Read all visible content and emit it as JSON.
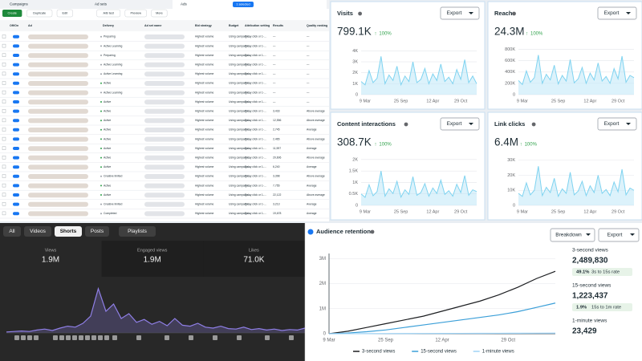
{
  "ads_table": {
    "tabs": [
      "Campaigns",
      "Ad sets",
      "Ads"
    ],
    "selected": "1 selected",
    "buttons": [
      "Create",
      "Duplicate",
      "Edit",
      "A/B test",
      "Preview",
      "More"
    ],
    "columns": [
      "Off/On",
      "Ad",
      "Delivery",
      "Ad set name",
      "Bid strategy",
      "Budget",
      "Attribution setting",
      "Results",
      "Quality ranking"
    ],
    "rows": [
      [
        "Preparing",
        "Highest volume",
        "Using campaign...",
        "7-day click or 1-...",
        "—",
        "—"
      ],
      [
        "Active Learning",
        "Highest volume",
        "Using campaign...",
        "7-day click or 1-...",
        "—",
        "—"
      ],
      [
        "Preparing",
        "Highest volume",
        "Using campaign...",
        "7-day click or 1-...",
        "—",
        "—"
      ],
      [
        "Active Learning",
        "Highest volume",
        "Using campaign...",
        "7-day click or 1-...",
        "—",
        "—"
      ],
      [
        "Active Learning",
        "Highest volume",
        "Using campaign...",
        "7-day click or 1-...",
        "—",
        "—"
      ],
      [
        "Active",
        "Highest volume",
        "Using campaign...",
        "7-day click or 1-...",
        "—",
        "—"
      ],
      [
        "Active Learning",
        "Highest volume",
        "Using campaign...",
        "7-day click or 1-...",
        "—",
        "—"
      ],
      [
        "Active",
        "Highest volume",
        "Using campaign...",
        "7-day click or 1-...",
        "—",
        "—"
      ],
      [
        "Active",
        "Highest volume",
        "Using campaign...",
        "7-day click or 1-...",
        "3,433",
        "Above average"
      ],
      [
        "Active",
        "Highest volume",
        "Using campaign...",
        "7-day click or 1-...",
        "12,556",
        "Above average"
      ],
      [
        "Active",
        "Highest volume",
        "Using campaign...",
        "7-day click or 1-...",
        "2,745",
        "Average"
      ],
      [
        "Active",
        "Highest volume",
        "Using campaign...",
        "7-day click or 1-...",
        "2,465",
        "Above average"
      ],
      [
        "Active",
        "Highest volume",
        "Using campaign...",
        "7-day click or 1-...",
        "11,597",
        "Average"
      ],
      [
        "Active",
        "Highest volume",
        "Using campaign...",
        "7-day click or 1-...",
        "20,606",
        "Above average"
      ],
      [
        "Active",
        "Highest volume",
        "Using campaign...",
        "7-day click or 1-...",
        "6,240",
        "Average"
      ],
      [
        "Creative limited",
        "Highest volume",
        "Using campaign...",
        "7-day click or 1-...",
        "3,398",
        "Above average"
      ],
      [
        "Active",
        "Highest volume",
        "Using campaign...",
        "7-day click or 1-...",
        "7,755",
        "Average"
      ],
      [
        "Active",
        "Highest volume",
        "Using campaign...",
        "7-day click or 1-...",
        "22,122",
        "Above average"
      ],
      [
        "Creative limited",
        "Highest volume",
        "Using campaign...",
        "7-day click or 1-...",
        "3,213",
        "Average"
      ],
      [
        "Completed",
        "Highest volume",
        "Using campaign...",
        "7-day click or 1-...",
        "19,678",
        "Average"
      ]
    ]
  },
  "metric_cards": [
    {
      "title": "Visits",
      "value": "799.1K",
      "change": "100%",
      "button": "Export",
      "color": "#7fd3f0",
      "xlim": [
        0,
        29
      ],
      "ylim": [
        0,
        4400
      ],
      "yticks": [
        0,
        {
          "value": 1000,
          "label": "1K"
        },
        {
          "value": 2000,
          "label": "2K"
        },
        {
          "value": 3000,
          "label": "3K"
        },
        {
          "value": 4000,
          "label": "4K"
        }
      ],
      "xticks": [
        {
          "value": 1,
          "label": "9 Mar"
        },
        {
          "value": 10,
          "label": "25 Sep"
        },
        {
          "value": 18,
          "label": "12 Apr"
        },
        {
          "value": 25,
          "label": "29 Oct"
        }
      ],
      "values": [
        1200,
        900,
        2200,
        1100,
        1500,
        3500,
        1000,
        1800,
        1300,
        2600,
        900,
        1700,
        1200,
        3000,
        1100,
        1400,
        2400,
        1000,
        1900,
        1300,
        2800,
        1200,
        1600,
        1000,
        2300,
        1400,
        3200,
        1100,
        1700,
        1000
      ]
    },
    {
      "title": "Reach",
      "value": "24.3M",
      "change": "100%",
      "button": "Export",
      "color": "#7fd3f0",
      "xlim": [
        0,
        29
      ],
      "ylim": [
        0,
        850000
      ],
      "yticks": [
        0,
        {
          "value": 200000,
          "label": "200K"
        },
        {
          "value": 400000,
          "label": "400K"
        },
        {
          "value": 600000,
          "label": "600K"
        },
        {
          "value": 800000,
          "label": "800K"
        }
      ],
      "xticks": [
        {
          "value": 1,
          "label": "9 Mar"
        },
        {
          "value": 10,
          "label": "25 Sep"
        },
        {
          "value": 18,
          "label": "12 Apr"
        },
        {
          "value": 25,
          "label": "29 Oct"
        }
      ],
      "values": [
        250000,
        180000,
        420000,
        220000,
        300000,
        700000,
        200000,
        360000,
        260000,
        520000,
        190000,
        340000,
        240000,
        620000,
        210000,
        280000,
        480000,
        200000,
        380000,
        260000,
        560000,
        240000,
        320000,
        200000,
        460000,
        280000,
        680000,
        220000,
        340000,
        300000
      ]
    },
    {
      "title": "Content interactions",
      "value": "308.7K",
      "change": "100%",
      "button": "Export",
      "color": "#7fd3f0",
      "xlim": [
        0,
        29
      ],
      "ylim": [
        0,
        2100
      ],
      "yticks": [
        0,
        {
          "value": 500,
          "label": "0.5K"
        },
        {
          "value": 1000,
          "label": "1K"
        },
        {
          "value": 1500,
          "label": "1.5K"
        },
        {
          "value": 2000,
          "label": "2K"
        }
      ],
      "xticks": [
        {
          "value": 1,
          "label": "9 Mar"
        },
        {
          "value": 10,
          "label": "25 Sep"
        },
        {
          "value": 18,
          "label": "12 Apr"
        },
        {
          "value": 25,
          "label": "29 Oct"
        }
      ],
      "values": [
        500,
        350,
        900,
        420,
        600,
        1500,
        400,
        720,
        520,
        1050,
        360,
        680,
        480,
        1250,
        440,
        560,
        950,
        400,
        760,
        520,
        1100,
        480,
        640,
        400,
        920,
        560,
        1300,
        440,
        680,
        600
      ]
    },
    {
      "title": "Link clicks",
      "value": "6.4M",
      "change": "100%",
      "button": "Export",
      "color": "#7fd3f0",
      "xlim": [
        0,
        29
      ],
      "ylim": [
        0,
        32000
      ],
      "yticks": [
        0,
        {
          "value": 10000,
          "label": "10K"
        },
        {
          "value": 20000,
          "label": "20K"
        },
        {
          "value": 30000,
          "label": "30K"
        }
      ],
      "xticks": [
        {
          "value": 1,
          "label": "9 Mar"
        },
        {
          "value": 10,
          "label": "25 Sep"
        },
        {
          "value": 18,
          "label": "12 Apr"
        },
        {
          "value": 25,
          "label": "29 Oct"
        }
      ],
      "values": [
        8000,
        6000,
        15000,
        7000,
        10000,
        26000,
        6500,
        12000,
        8500,
        18000,
        6000,
        11000,
        8000,
        22000,
        7000,
        9500,
        16000,
        6500,
        13000,
        8500,
        20000,
        8000,
        10500,
        6500,
        15500,
        9000,
        24000,
        7000,
        11500,
        10000
      ]
    }
  ],
  "shorts_panel": {
    "tabs": [
      "All",
      "Videos",
      "Shorts",
      "Posts",
      "Playlists"
    ],
    "active_tab": "Shorts",
    "stats": [
      {
        "label": "Views",
        "value": "1.9M"
      },
      {
        "label": "Engaged views",
        "value": "1.9M"
      },
      {
        "label": "Likes",
        "value": "71.0K"
      }
    ],
    "chart": {
      "type": "area",
      "color": "#8f7fe6",
      "ylim": [
        0,
        100
      ],
      "values": [
        2,
        3,
        4,
        3,
        6,
        8,
        5,
        10,
        14,
        12,
        20,
        35,
        92,
        45,
        60,
        30,
        40,
        22,
        28,
        18,
        24,
        15,
        30,
        16,
        14,
        20,
        12,
        10,
        14,
        9,
        8,
        12,
        7,
        9,
        6,
        8,
        5,
        7,
        6,
        10
      ]
    }
  },
  "retention": {
    "title": "Audience retention",
    "buttons": [
      "Breakdown",
      "Export"
    ],
    "chart": {
      "type": "line",
      "xlim": [
        0,
        12
      ],
      "ylim": [
        0,
        3200000
      ],
      "yticks": [
        0,
        {
          "value": 1000000,
          "label": "1M"
        },
        {
          "value": 2000000,
          "label": "2M"
        },
        {
          "value": 3000000,
          "label": "3M"
        }
      ],
      "xticks": [
        {
          "value": 0,
          "label": "9 Mar"
        },
        {
          "value": 3,
          "label": "25 Sep"
        },
        {
          "value": 6,
          "label": "12 Apr"
        },
        {
          "value": 9.5,
          "label": "29 Oct"
        }
      ],
      "series": [
        {
          "name": "3-second views",
          "color": "#1c1e21",
          "values": [
            0,
            100000,
            250000,
            400000,
            550000,
            700000,
            900000,
            1100000,
            1300000,
            1550000,
            1850000,
            2200000,
            2489830
          ]
        },
        {
          "name": "15-second views",
          "color": "#3b9fd8",
          "values": [
            0,
            30000,
            80000,
            150000,
            250000,
            350000,
            450000,
            550000,
            650000,
            750000,
            880000,
            1050000,
            1223437
          ]
        },
        {
          "name": "1-minute views",
          "color": "#9fd3f5",
          "values": [
            0,
            2000,
            4000,
            6000,
            8000,
            10000,
            12000,
            14000,
            16000,
            18000,
            20000,
            22000,
            23429
          ]
        }
      ]
    },
    "stats": [
      {
        "label": "3-second views",
        "value": "2,489,830",
        "rate": "49.1%",
        "rate_label": "3s to 15s rate"
      },
      {
        "label": "15-second views",
        "value": "1,223,437",
        "rate": "1.9%",
        "rate_label": "15s to 1m rate"
      },
      {
        "label": "1-minute views",
        "value": "23,429"
      }
    ]
  }
}
